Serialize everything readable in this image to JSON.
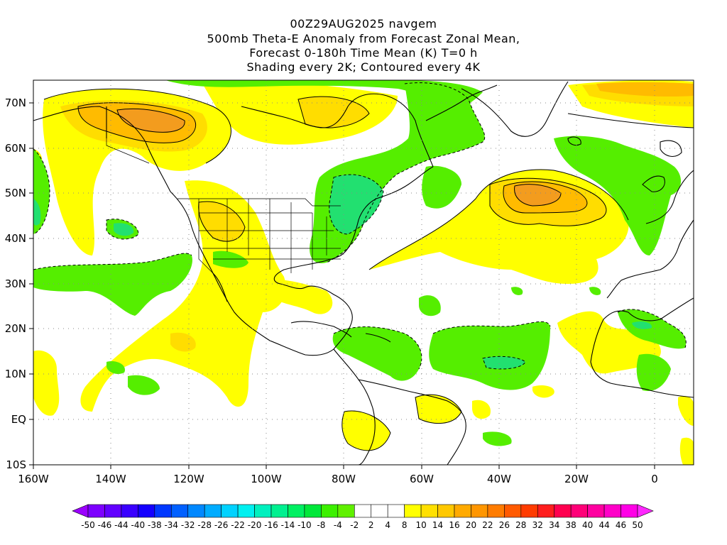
{
  "header": {
    "line1": "00Z29AUG2025 navgem",
    "line2": "500mb Theta-E Anomaly from Forecast Zonal Mean,",
    "line3": "Forecast 0-180h Time Mean (K) T=0 h",
    "line4": "Shading every 2K; Contoured every 4K"
  },
  "map": {
    "lat_labels": [
      "70N",
      "60N",
      "50N",
      "40N",
      "30N",
      "20N",
      "10N",
      "EQ",
      "10S"
    ],
    "lon_labels": [
      "160W",
      "140W",
      "120W",
      "100W",
      "80W",
      "60W",
      "40W",
      "20W",
      "0"
    ],
    "projection": "cylindrical equidistant",
    "extent": {
      "lon": [
        -160,
        10
      ],
      "lat": [
        -10,
        75
      ]
    }
  },
  "colorbar": {
    "labels": [
      "-50",
      "-46",
      "-44",
      "-40",
      "-38",
      "-34",
      "-32",
      "-28",
      "-26",
      "-22",
      "-20",
      "-16",
      "-14",
      "-10",
      "-8",
      "-4",
      "-2",
      "2",
      "4",
      "8",
      "10",
      "14",
      "16",
      "20",
      "22",
      "26",
      "28",
      "32",
      "34",
      "38",
      "40",
      "44",
      "46",
      "50"
    ],
    "colors": [
      "#9b00ff",
      "#7d00ff",
      "#6200ff",
      "#3a00ff",
      "#1400ff",
      "#0038ff",
      "#0060ff",
      "#0088ff",
      "#00acff",
      "#00d2ff",
      "#00f0f0",
      "#00f0be",
      "#00f090",
      "#00f062",
      "#00e83a",
      "#3cf000",
      "#60f000",
      "#ffffff",
      "#ffffff",
      "#ffffff",
      "#ffff00",
      "#ffe000",
      "#ffc800",
      "#ffaa00",
      "#ff9600",
      "#ff7c00",
      "#ff5a00",
      "#ff3c00",
      "#ff1e1e",
      "#ff0050",
      "#ff0078",
      "#ff00a0",
      "#ff00c8",
      "#ff00e6",
      "#ff28ff"
    ]
  },
  "anomaly_colors": {
    "green": "#55ee00",
    "green_dark": "#22e070",
    "yellow": "#ffff00",
    "yellow_deep": "#ffdd00",
    "orange": "#ffbb00",
    "orange_dark": "#f39c1e"
  }
}
